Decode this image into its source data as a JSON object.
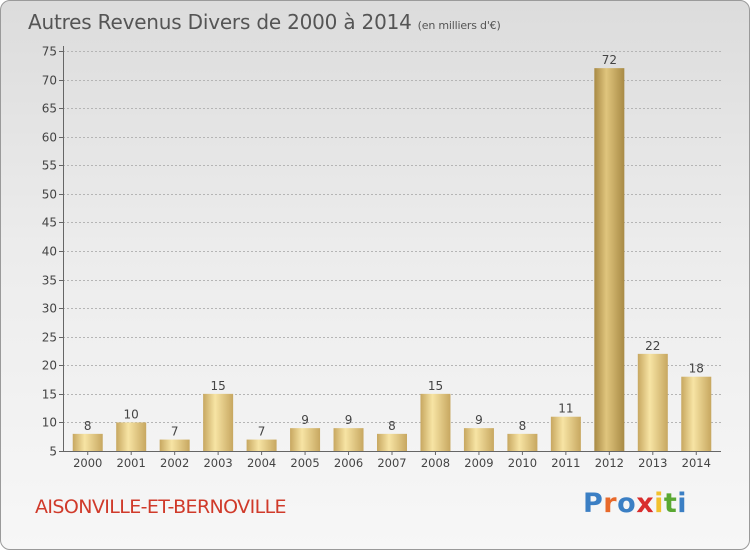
{
  "header": {
    "title": "Autres Revenus Divers de 2000 à 2014",
    "subtitle": "(en milliers d'€)"
  },
  "footer": {
    "commune": "AISONVILLE-ET-BERNOVILLE",
    "logo": [
      "P",
      "r",
      "o",
      "x",
      "i",
      "t",
      "i"
    ]
  },
  "colors": {
    "bar_light": "#f7e4a4",
    "bar_dark": "#c7a760",
    "axis_text": "#444444",
    "grid": "#b5b5b5",
    "commune": "#d03a2a",
    "logo": [
      "#3b7fc4",
      "#e8692a",
      "#3b7fc4",
      "#d92d2d",
      "#f2c12e",
      "#5aa832",
      "#3b7fc4"
    ]
  },
  "chart_data": {
    "type": "bar",
    "categories": [
      "2000",
      "2001",
      "2002",
      "2003",
      "2004",
      "2005",
      "2006",
      "2007",
      "2008",
      "2009",
      "2010",
      "2011",
      "2012",
      "2013",
      "2014"
    ],
    "values": [
      8,
      10,
      7,
      15,
      7,
      9,
      9,
      8,
      15,
      9,
      8,
      11,
      72,
      22,
      18
    ],
    "highlight_index": 12,
    "ylim": [
      5,
      75
    ],
    "yticks": [
      5,
      10,
      15,
      20,
      25,
      30,
      35,
      40,
      45,
      50,
      55,
      60,
      65,
      70,
      75
    ],
    "grid": true,
    "title": "Autres Revenus Divers de 2000 à 2014",
    "xlabel": "",
    "ylabel": ""
  }
}
